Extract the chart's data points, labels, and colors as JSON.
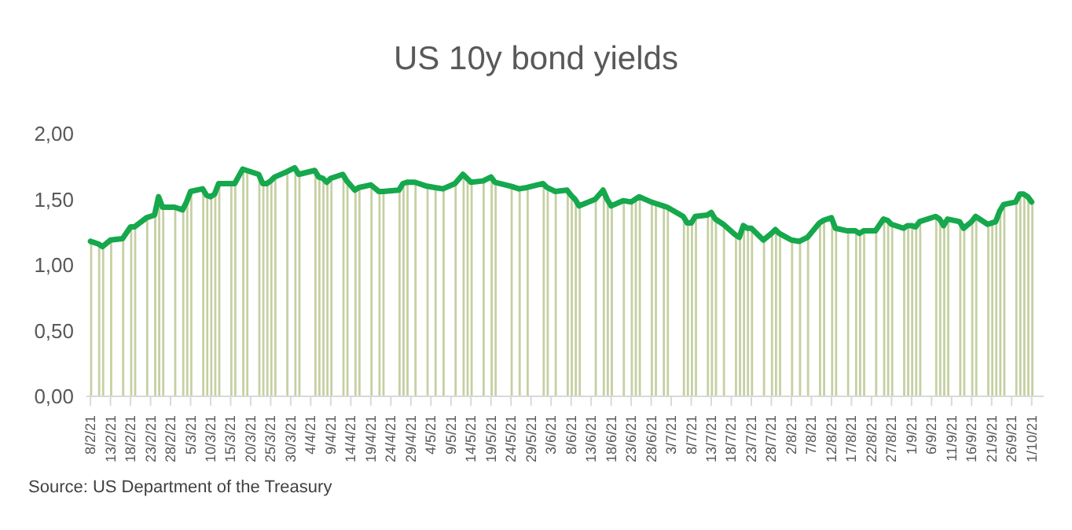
{
  "chart_data": {
    "type": "line",
    "title": "US 10y bond yields",
    "annotations": [
      "Source: US Department of the Treasury"
    ],
    "x": [
      "--02-08",
      "--02-10",
      "--02-11",
      "--02-13",
      "--02-16",
      "--02-18",
      "--02-19",
      "--02-22",
      "--02-24",
      "--02-25",
      "--02-26",
      "--03-01",
      "--03-03",
      "--03-04",
      "--03-05",
      "--03-08",
      "--03-09",
      "--03-10",
      "--03-11",
      "--03-12",
      "--03-15",
      "--03-16",
      "--03-18",
      "--03-19",
      "--03-22",
      "--03-23",
      "--03-24",
      "--03-25",
      "--03-26",
      "--03-29",
      "--03-31",
      "--04-01",
      "--04-05",
      "--04-06",
      "--04-07",
      "--04-08",
      "--04-09",
      "--04-12",
      "--04-13",
      "--04-15",
      "--04-16",
      "--04-19",
      "--04-21",
      "--04-22",
      "--04-26",
      "--04-27",
      "--04-28",
      "--04-30",
      "--05-03",
      "--05-05",
      "--05-07",
      "--05-10",
      "--05-12",
      "--05-13",
      "--05-14",
      "--05-17",
      "--05-19",
      "--05-20",
      "--05-24",
      "--05-26",
      "--05-28",
      "--06-01",
      "--06-02",
      "--06-04",
      "--06-07",
      "--06-08",
      "--06-09",
      "--06-10",
      "--06-14",
      "--06-16",
      "--06-17",
      "--06-18",
      "--06-21",
      "--06-23",
      "--06-24",
      "--06-25",
      "--06-28",
      "--06-29",
      "--07-01",
      "--07-02",
      "--07-06",
      "--07-07",
      "--07-08",
      "--07-09",
      "--07-12",
      "--07-13",
      "--07-14",
      "--07-16",
      "--07-19",
      "--07-20",
      "--07-21",
      "--07-22",
      "--07-23",
      "--07-26",
      "--07-28",
      "--07-29",
      "--07-30",
      "--08-02",
      "--08-04",
      "--08-06",
      "--08-09",
      "--08-10",
      "--08-12",
      "--08-13",
      "--08-16",
      "--08-18",
      "--08-19",
      "--08-20",
      "--08-23",
      "--08-25",
      "--08-26",
      "--08-27",
      "--08-30",
      "--08-31",
      "--09-01",
      "--09-02",
      "--09-03",
      "--09-07",
      "--09-08",
      "--09-09",
      "--09-10",
      "--09-13",
      "--09-14",
      "--09-16",
      "--09-17",
      "--09-20",
      "--09-21",
      "--09-22",
      "--09-23",
      "--09-24",
      "--09-27",
      "--09-28",
      "--09-29",
      "--09-30",
      "--10-01"
    ],
    "series": [
      {
        "type": "bar",
        "color": "#c5d0a3",
        "values": [
          1.18,
          1.16,
          1.14,
          1.19,
          1.2,
          1.29,
          1.29,
          1.36,
          1.38,
          1.52,
          1.44,
          1.44,
          1.42,
          1.48,
          1.56,
          1.58,
          1.53,
          1.52,
          1.54,
          1.62,
          1.62,
          1.62,
          1.73,
          1.72,
          1.69,
          1.62,
          1.62,
          1.64,
          1.67,
          1.71,
          1.74,
          1.69,
          1.72,
          1.67,
          1.66,
          1.63,
          1.66,
          1.69,
          1.64,
          1.57,
          1.59,
          1.61,
          1.56,
          1.56,
          1.57,
          1.62,
          1.63,
          1.63,
          1.6,
          1.59,
          1.58,
          1.62,
          1.69,
          1.66,
          1.63,
          1.64,
          1.67,
          1.63,
          1.6,
          1.58,
          1.59,
          1.62,
          1.59,
          1.56,
          1.57,
          1.53,
          1.5,
          1.45,
          1.5,
          1.57,
          1.5,
          1.45,
          1.49,
          1.48,
          1.5,
          1.52,
          1.48,
          1.47,
          1.45,
          1.44,
          1.37,
          1.32,
          1.32,
          1.37,
          1.38,
          1.4,
          1.35,
          1.31,
          1.23,
          1.21,
          1.3,
          1.28,
          1.28,
          1.19,
          1.24,
          1.27,
          1.24,
          1.19,
          1.18,
          1.21,
          1.32,
          1.34,
          1.36,
          1.28,
          1.26,
          1.26,
          1.24,
          1.26,
          1.26,
          1.35,
          1.34,
          1.31,
          1.28,
          1.3,
          1.3,
          1.29,
          1.33,
          1.37,
          1.35,
          1.3,
          1.35,
          1.33,
          1.28,
          1.33,
          1.37,
          1.31,
          1.32,
          1.33,
          1.41,
          1.46,
          1.48,
          1.54,
          1.54,
          1.52,
          1.48
        ]
      },
      {
        "color": "#15a84c",
        "values": [
          1.18,
          1.16,
          1.14,
          1.19,
          1.2,
          1.29,
          1.29,
          1.36,
          1.38,
          1.52,
          1.44,
          1.44,
          1.42,
          1.48,
          1.56,
          1.58,
          1.53,
          1.52,
          1.54,
          1.62,
          1.62,
          1.62,
          1.73,
          1.72,
          1.69,
          1.62,
          1.62,
          1.64,
          1.67,
          1.71,
          1.74,
          1.69,
          1.72,
          1.67,
          1.66,
          1.63,
          1.66,
          1.69,
          1.64,
          1.57,
          1.59,
          1.61,
          1.56,
          1.56,
          1.57,
          1.62,
          1.63,
          1.63,
          1.6,
          1.59,
          1.58,
          1.62,
          1.69,
          1.66,
          1.63,
          1.64,
          1.67,
          1.63,
          1.6,
          1.58,
          1.59,
          1.62,
          1.59,
          1.56,
          1.57,
          1.53,
          1.5,
          1.45,
          1.5,
          1.57,
          1.5,
          1.45,
          1.49,
          1.48,
          1.5,
          1.52,
          1.48,
          1.47,
          1.45,
          1.44,
          1.37,
          1.32,
          1.32,
          1.37,
          1.38,
          1.4,
          1.35,
          1.31,
          1.23,
          1.21,
          1.3,
          1.28,
          1.28,
          1.19,
          1.24,
          1.27,
          1.24,
          1.19,
          1.18,
          1.21,
          1.32,
          1.34,
          1.36,
          1.28,
          1.26,
          1.26,
          1.24,
          1.26,
          1.26,
          1.35,
          1.34,
          1.31,
          1.28,
          1.3,
          1.3,
          1.29,
          1.33,
          1.37,
          1.35,
          1.3,
          1.35,
          1.33,
          1.28,
          1.33,
          1.37,
          1.31,
          1.32,
          1.33,
          1.41,
          1.46,
          1.48,
          1.54,
          1.54,
          1.52,
          1.48
        ]
      }
    ],
    "xlim": [
      "--02-07",
      "--10-04"
    ],
    "xticks": [
      {
        "value": "--02-08",
        "label": "8/2/21"
      },
      {
        "value": "--02-13",
        "label": "13/2/21"
      },
      {
        "value": "--02-18",
        "label": "18/2/21"
      },
      {
        "value": "--02-23",
        "label": "23/2/21"
      },
      {
        "value": "--02-28",
        "label": "28/2/21"
      },
      {
        "value": "--03-05",
        "label": "5/3/21"
      },
      {
        "value": "--03-10",
        "label": "10/3/21"
      },
      {
        "value": "--03-15",
        "label": "15/3/21"
      },
      {
        "value": "--03-20",
        "label": "20/3/21"
      },
      {
        "value": "--03-25",
        "label": "25/3/21"
      },
      {
        "value": "--03-30",
        "label": "30/3/21"
      },
      {
        "value": "--04-04",
        "label": "4/4/21"
      },
      {
        "value": "--04-09",
        "label": "9/4/21"
      },
      {
        "value": "--04-14",
        "label": "14/4/21"
      },
      {
        "value": "--04-19",
        "label": "19/4/21"
      },
      {
        "value": "--04-24",
        "label": "24/4/21"
      },
      {
        "value": "--04-29",
        "label": "29/4/21"
      },
      {
        "value": "--05-04",
        "label": "4/5/21"
      },
      {
        "value": "--05-09",
        "label": "9/5/21"
      },
      {
        "value": "--05-14",
        "label": "14/5/21"
      },
      {
        "value": "--05-19",
        "label": "19/5/21"
      },
      {
        "value": "--05-24",
        "label": "24/5/21"
      },
      {
        "value": "--05-29",
        "label": "29/5/21"
      },
      {
        "value": "--06-03",
        "label": "3/6/21"
      },
      {
        "value": "--06-08",
        "label": "8/6/21"
      },
      {
        "value": "--06-13",
        "label": "13/6/21"
      },
      {
        "value": "--06-18",
        "label": "18/6/21"
      },
      {
        "value": "--06-23",
        "label": "23/6/21"
      },
      {
        "value": "--06-28",
        "label": "28/6/21"
      },
      {
        "value": "--07-03",
        "label": "3/7/21"
      },
      {
        "value": "--07-08",
        "label": "8/7/21"
      },
      {
        "value": "--07-13",
        "label": "13/7/21"
      },
      {
        "value": "--07-18",
        "label": "18/7/21"
      },
      {
        "value": "--07-23",
        "label": "23/7/21"
      },
      {
        "value": "--07-28",
        "label": "28/7/21"
      },
      {
        "value": "--08-02",
        "label": "2/8/21"
      },
      {
        "value": "--08-07",
        "label": "7/8/21"
      },
      {
        "value": "--08-12",
        "label": "12/8/21"
      },
      {
        "value": "--08-17",
        "label": "17/8/21"
      },
      {
        "value": "--08-22",
        "label": "22/8/21"
      },
      {
        "value": "--08-27",
        "label": "27/8/21"
      },
      {
        "value": "--09-01",
        "label": "1/9/21"
      },
      {
        "value": "--09-06",
        "label": "6/9/21"
      },
      {
        "value": "--09-11",
        "label": "11/9/21"
      },
      {
        "value": "--09-16",
        "label": "16/9/21"
      },
      {
        "value": "--09-21",
        "label": "21/9/21"
      },
      {
        "value": "--09-26",
        "label": "26/9/21"
      },
      {
        "value": "--10-01",
        "label": "1/10/21"
      }
    ],
    "ylim": [
      0,
      2
    ],
    "yticks": [
      {
        "value": 0,
        "label": "0,00"
      },
      {
        "value": 0.5,
        "label": "0,50"
      },
      {
        "value": 1,
        "label": "1,00"
      },
      {
        "value": 1.5,
        "label": "1,50"
      },
      {
        "value": 2,
        "label": "2,00"
      }
    ],
    "grid": false,
    "legend": false,
    "marker": "none",
    "line_style": "solid"
  }
}
